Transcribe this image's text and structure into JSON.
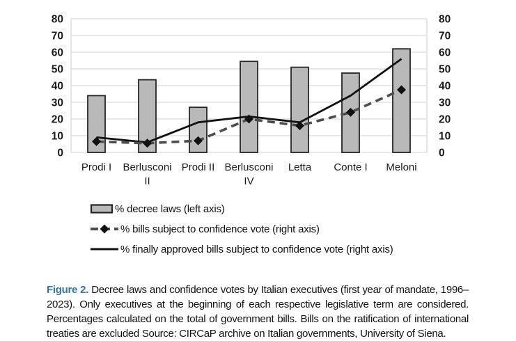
{
  "chart_data": {
    "type": "bar",
    "subtype": "bar+line combo, dual axis",
    "title": "",
    "xlabel": "",
    "ylabel": "",
    "grid": true,
    "legend_position": "bottom-left",
    "categories": [
      "Prodi I",
      "Berlusconi II",
      "Prodi II",
      "Berlusconi IV",
      "Letta",
      "Conte I",
      "Meloni"
    ],
    "wrapped_categories": [
      "Berlusconi II",
      "Berlusconi IV"
    ],
    "series": [
      {
        "name": "% decree laws (left axis)",
        "type": "bar",
        "axis": "left",
        "values": [
          34,
          43.5,
          27,
          54.5,
          51,
          47.5,
          62
        ]
      },
      {
        "name": "% bills subject to confidence vote (right axis)",
        "type": "dashed-line-diamond-markers",
        "axis": "right",
        "values": [
          6.5,
          5.5,
          7,
          20,
          16,
          24,
          37.5
        ]
      },
      {
        "name": "% finally approved bills subject to confidence vote (right axis)",
        "type": "solid-line",
        "axis": "right",
        "values": [
          9,
          6,
          18,
          21.5,
          18,
          34,
          56
        ]
      }
    ],
    "left_axis": {
      "min": 0,
      "max": 80,
      "step": 10,
      "tick_labels": [
        "80",
        "70",
        "60",
        "50",
        "40",
        "30",
        "20",
        "10",
        "0"
      ]
    },
    "right_axis": {
      "min": 0,
      "max": 80,
      "step": 10,
      "tick_labels": [
        "80",
        "70",
        "60",
        "50",
        "40",
        "30",
        "20",
        "10",
        "0"
      ]
    }
  },
  "colors": {
    "bar_fill": "#b9b9b9",
    "bar_stroke": "#262626",
    "dashed_line": "#4d4d4d",
    "solid_line": "#111111",
    "marker": "#111111",
    "gridline": "#d9d9d9",
    "figure_label_blue": "#2f73b0"
  },
  "legend": {
    "items": [
      {
        "label": "% decree laws (left axis)",
        "marker": "gray-bar-swatch"
      },
      {
        "label": "% bills subject to confidence vote (right axis)",
        "marker": "dash-diamond-dash"
      },
      {
        "label": "% finally approved bills subject to confidence vote (right axis)",
        "marker": "solid-line"
      }
    ]
  },
  "caption": {
    "label": "Figure 2.",
    "text": "Decree laws and confidence votes by Italian executives (first year of mandate, 1996–2023). Only executives at the beginning of each respective legislative term are considered. Percentages calculated on the total of government bills. Bills on the ratification of international treaties are excluded Source: CIRCaP archive on Italian governments, University of Siena."
  }
}
